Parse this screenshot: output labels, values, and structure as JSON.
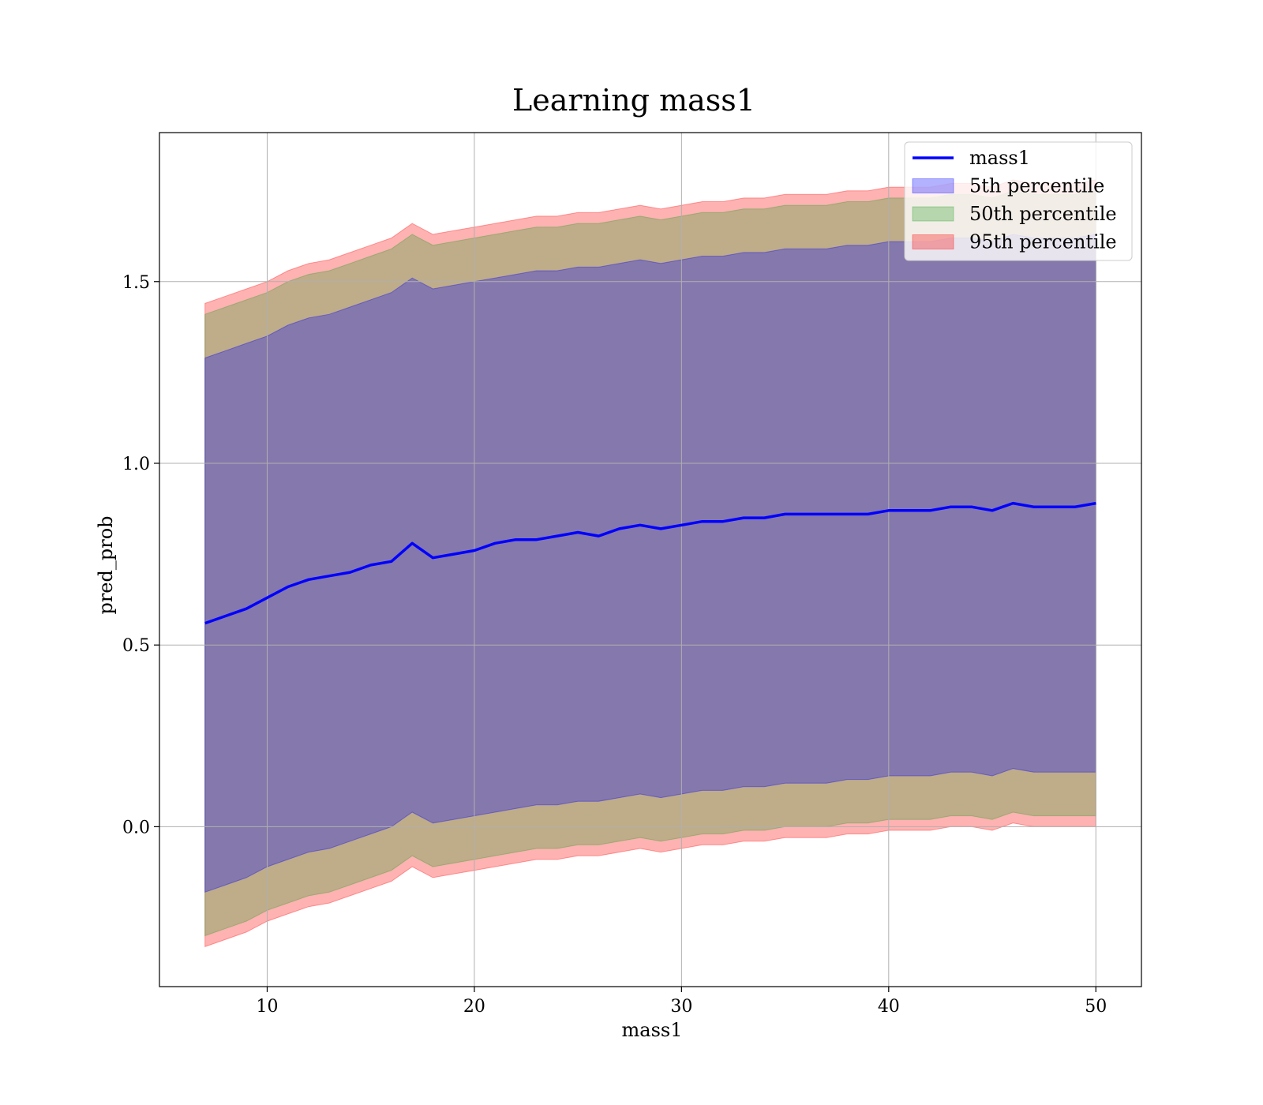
{
  "chart_data": {
    "type": "area",
    "title": "Learning mass1",
    "xlabel": "mass1",
    "ylabel": "pred_prob",
    "xlim": [
      4.8,
      52.2
    ],
    "ylim": [
      -0.44,
      1.91
    ],
    "xticks": [
      10,
      20,
      30,
      40,
      50
    ],
    "xtick_labels": [
      "10",
      "20",
      "30",
      "40",
      "50"
    ],
    "yticks": [
      0.0,
      0.5,
      1.0,
      1.5
    ],
    "ytick_labels": [
      "0.0",
      "0.5",
      "1.0",
      "1.5"
    ],
    "grid": true,
    "legend": {
      "placement": "top-right",
      "entries": [
        "mass1",
        "5th percentile",
        "50th percentile",
        "95th percentile"
      ]
    },
    "x": [
      7,
      8,
      9,
      10,
      11,
      12,
      13,
      14,
      15,
      16,
      17,
      18,
      19,
      20,
      21,
      22,
      23,
      24,
      25,
      26,
      27,
      28,
      29,
      30,
      31,
      32,
      33,
      34,
      35,
      36,
      37,
      38,
      39,
      40,
      41,
      42,
      43,
      44,
      45,
      46,
      47,
      48,
      49,
      50
    ],
    "series": [
      {
        "name": "mass1",
        "kind": "line",
        "color": "#0000ff",
        "values": [
          0.56,
          0.58,
          0.6,
          0.63,
          0.66,
          0.68,
          0.69,
          0.7,
          0.72,
          0.73,
          0.78,
          0.74,
          0.75,
          0.76,
          0.78,
          0.79,
          0.79,
          0.8,
          0.81,
          0.8,
          0.82,
          0.83,
          0.82,
          0.83,
          0.84,
          0.84,
          0.85,
          0.85,
          0.86,
          0.86,
          0.86,
          0.86,
          0.86,
          0.87,
          0.87,
          0.87,
          0.88,
          0.88,
          0.87,
          0.89,
          0.88,
          0.88,
          0.88,
          0.89
        ]
      },
      {
        "name": "5th percentile",
        "kind": "band",
        "color": "#0000ff",
        "upper": [
          1.29,
          1.31,
          1.33,
          1.35,
          1.38,
          1.4,
          1.41,
          1.43,
          1.45,
          1.47,
          1.51,
          1.48,
          1.49,
          1.5,
          1.51,
          1.52,
          1.53,
          1.53,
          1.54,
          1.54,
          1.55,
          1.56,
          1.55,
          1.56,
          1.57,
          1.57,
          1.58,
          1.58,
          1.59,
          1.59,
          1.59,
          1.6,
          1.6,
          1.61,
          1.61,
          1.61,
          1.62,
          1.62,
          1.61,
          1.63,
          1.62,
          1.62,
          1.62,
          1.63
        ],
        "lower": [
          -0.18,
          -0.16,
          -0.14,
          -0.11,
          -0.09,
          -0.07,
          -0.06,
          -0.04,
          -0.02,
          0.0,
          0.04,
          0.01,
          0.02,
          0.03,
          0.04,
          0.05,
          0.06,
          0.06,
          0.07,
          0.07,
          0.08,
          0.09,
          0.08,
          0.09,
          0.1,
          0.1,
          0.11,
          0.11,
          0.12,
          0.12,
          0.12,
          0.13,
          0.13,
          0.14,
          0.14,
          0.14,
          0.15,
          0.15,
          0.14,
          0.16,
          0.15,
          0.15,
          0.15,
          0.15
        ]
      },
      {
        "name": "50th percentile",
        "kind": "band",
        "color": "#2ca02c",
        "upper": [
          1.41,
          1.43,
          1.45,
          1.47,
          1.5,
          1.52,
          1.53,
          1.55,
          1.57,
          1.59,
          1.63,
          1.6,
          1.61,
          1.62,
          1.63,
          1.64,
          1.65,
          1.65,
          1.66,
          1.66,
          1.67,
          1.68,
          1.67,
          1.68,
          1.69,
          1.69,
          1.7,
          1.7,
          1.71,
          1.71,
          1.71,
          1.72,
          1.72,
          1.73,
          1.73,
          1.73,
          1.74,
          1.74,
          1.73,
          1.75,
          1.74,
          1.74,
          1.74,
          1.75
        ],
        "lower": [
          -0.3,
          -0.28,
          -0.26,
          -0.23,
          -0.21,
          -0.19,
          -0.18,
          -0.16,
          -0.14,
          -0.12,
          -0.08,
          -0.11,
          -0.1,
          -0.09,
          -0.08,
          -0.07,
          -0.06,
          -0.06,
          -0.05,
          -0.05,
          -0.04,
          -0.03,
          -0.04,
          -0.03,
          -0.02,
          -0.02,
          -0.01,
          -0.01,
          0.0,
          0.0,
          0.0,
          0.01,
          0.01,
          0.02,
          0.02,
          0.02,
          0.03,
          0.03,
          0.02,
          0.04,
          0.03,
          0.03,
          0.03,
          0.03
        ]
      },
      {
        "name": "95th percentile",
        "kind": "band",
        "color": "#ff0000",
        "upper": [
          1.44,
          1.46,
          1.48,
          1.5,
          1.53,
          1.55,
          1.56,
          1.58,
          1.6,
          1.62,
          1.66,
          1.63,
          1.64,
          1.65,
          1.66,
          1.67,
          1.68,
          1.68,
          1.69,
          1.69,
          1.7,
          1.71,
          1.7,
          1.71,
          1.72,
          1.72,
          1.73,
          1.73,
          1.74,
          1.74,
          1.74,
          1.75,
          1.75,
          1.76,
          1.76,
          1.76,
          1.77,
          1.77,
          1.76,
          1.78,
          1.77,
          1.77,
          1.77,
          1.78
        ],
        "lower": [
          -0.33,
          -0.31,
          -0.29,
          -0.26,
          -0.24,
          -0.22,
          -0.21,
          -0.19,
          -0.17,
          -0.15,
          -0.11,
          -0.14,
          -0.13,
          -0.12,
          -0.11,
          -0.1,
          -0.09,
          -0.09,
          -0.08,
          -0.08,
          -0.07,
          -0.06,
          -0.07,
          -0.06,
          -0.05,
          -0.05,
          -0.04,
          -0.04,
          -0.03,
          -0.03,
          -0.03,
          -0.02,
          -0.02,
          -0.01,
          -0.01,
          -0.01,
          0.0,
          0.0,
          -0.01,
          0.01,
          0.0,
          0.0,
          0.0,
          0.0
        ]
      }
    ]
  }
}
